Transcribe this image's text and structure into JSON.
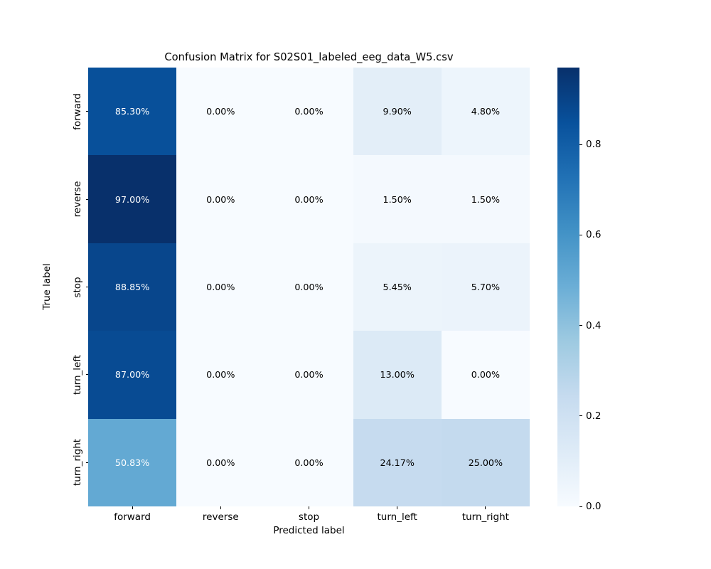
{
  "title": "Confusion Matrix for S02S01_labeled_eeg_data_W5.csv",
  "chart_data": {
    "type": "heatmap",
    "title": "Confusion Matrix for S02S01_labeled_eeg_data_W5.csv",
    "xlabel": "Predicted label",
    "ylabel": "True label",
    "x_categories": [
      "forward",
      "reverse",
      "stop",
      "turn_left",
      "turn_right"
    ],
    "y_categories": [
      "forward",
      "reverse",
      "stop",
      "turn_left",
      "turn_right"
    ],
    "cell_labels": [
      [
        "85.30%",
        "0.00%",
        "0.00%",
        "9.90%",
        "4.80%"
      ],
      [
        "97.00%",
        "0.00%",
        "0.00%",
        "1.50%",
        "1.50%"
      ],
      [
        "88.85%",
        "0.00%",
        "0.00%",
        "5.45%",
        "5.70%"
      ],
      [
        "87.00%",
        "0.00%",
        "0.00%",
        "13.00%",
        "0.00%"
      ],
      [
        "50.83%",
        "0.00%",
        "0.00%",
        "24.17%",
        "25.00%"
      ]
    ],
    "matrix_fraction": [
      [
        0.853,
        0.0,
        0.0,
        0.099,
        0.048
      ],
      [
        0.97,
        0.0,
        0.0,
        0.015,
        0.015
      ],
      [
        0.8885,
        0.0,
        0.0,
        0.0545,
        0.057
      ],
      [
        0.87,
        0.0,
        0.0,
        0.13,
        0.0
      ],
      [
        0.5083,
        0.0,
        0.0,
        0.2417,
        0.25
      ]
    ],
    "colormap": "Blues",
    "colormap_anchors": [
      "#f7fbff",
      "#deebf7",
      "#c6dbef",
      "#9ecae1",
      "#6baed6",
      "#4292c6",
      "#2171b5",
      "#08519c",
      "#08306b"
    ],
    "vmin": 0.0,
    "vmax": 0.97,
    "colorbar_ticks": [
      0.0,
      0.2,
      0.4,
      0.6,
      0.8
    ],
    "legend_position": "right-colorbar",
    "grid": false
  },
  "colors": {
    "background": "#ffffff",
    "text": "#000000",
    "cell_text_light": "#ffffff",
    "cell_text_dark": "#000000",
    "tick": "#000000"
  }
}
